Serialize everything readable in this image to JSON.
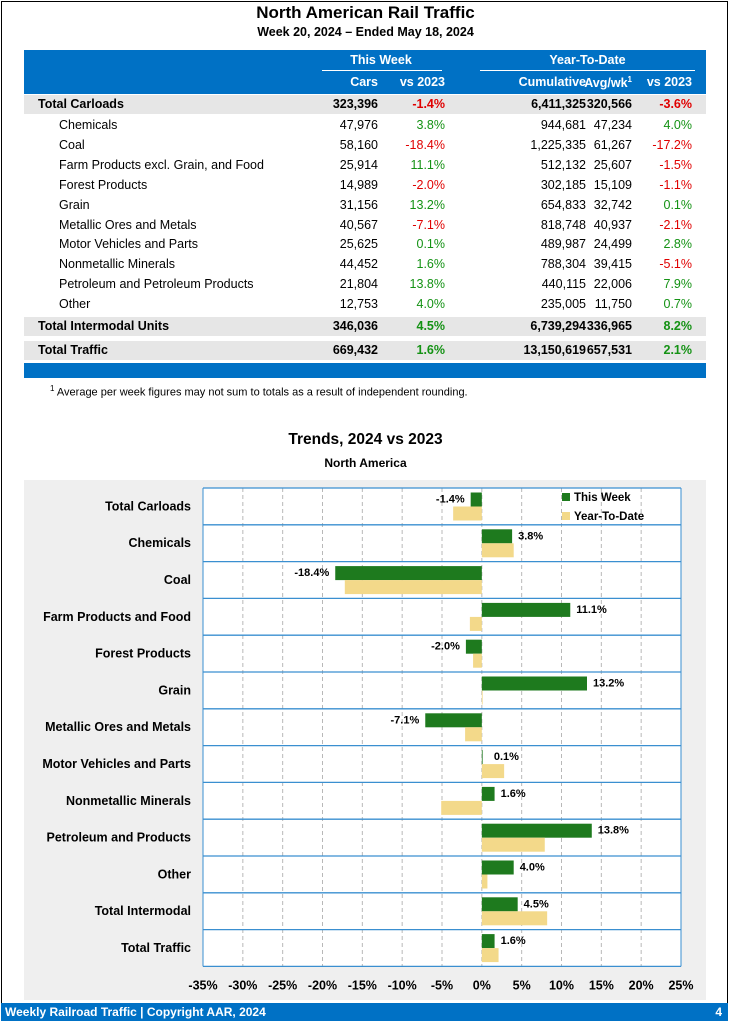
{
  "header": {
    "title": "North American Rail Traffic",
    "subtitle": "Week 20, 2024 – Ended May 18, 2024"
  },
  "table": {
    "group_this_week": "This Week",
    "group_ytd": "Year-To-Date",
    "col_cars": "Cars",
    "col_vs2023_week": "vs 2023",
    "col_cumulative": "Cumulative",
    "col_avgwk": "Avg/wk",
    "col_avgwk_sup": "1",
    "col_vs2023_ytd": "vs 2023",
    "rows": [
      {
        "label": "Total Carloads",
        "cars": "323,396",
        "wk_pct": "-1.4%",
        "cum": "6,411,325",
        "avg": "320,566",
        "ytd_pct": "-3.6%"
      },
      {
        "label": "Chemicals",
        "cars": "47,976",
        "wk_pct": "3.8%",
        "cum": "944,681",
        "avg": "47,234",
        "ytd_pct": "4.0%"
      },
      {
        "label": "Coal",
        "cars": "58,160",
        "wk_pct": "-18.4%",
        "cum": "1,225,335",
        "avg": "61,267",
        "ytd_pct": "-17.2%"
      },
      {
        "label": "Farm Products excl. Grain, and Food",
        "cars": "25,914",
        "wk_pct": "11.1%",
        "cum": "512,132",
        "avg": "25,607",
        "ytd_pct": "-1.5%"
      },
      {
        "label": "Forest Products",
        "cars": "14,989",
        "wk_pct": "-2.0%",
        "cum": "302,185",
        "avg": "15,109",
        "ytd_pct": "-1.1%"
      },
      {
        "label": "Grain",
        "cars": "31,156",
        "wk_pct": "13.2%",
        "cum": "654,833",
        "avg": "32,742",
        "ytd_pct": "0.1%"
      },
      {
        "label": "Metallic Ores and Metals",
        "cars": "40,567",
        "wk_pct": "-7.1%",
        "cum": "818,748",
        "avg": "40,937",
        "ytd_pct": "-2.1%"
      },
      {
        "label": "Motor Vehicles and Parts",
        "cars": "25,625",
        "wk_pct": "0.1%",
        "cum": "489,987",
        "avg": "24,499",
        "ytd_pct": "2.8%"
      },
      {
        "label": "Nonmetallic Minerals",
        "cars": "44,452",
        "wk_pct": "1.6%",
        "cum": "788,304",
        "avg": "39,415",
        "ytd_pct": "-5.1%"
      },
      {
        "label": "Petroleum and Petroleum Products",
        "cars": "21,804",
        "wk_pct": "13.8%",
        "cum": "440,115",
        "avg": "22,006",
        "ytd_pct": "7.9%"
      },
      {
        "label": "Other",
        "cars": "12,753",
        "wk_pct": "4.0%",
        "cum": "235,005",
        "avg": "11,750",
        "ytd_pct": "0.7%"
      },
      {
        "label": "Total Intermodal Units",
        "cars": "346,036",
        "wk_pct": "4.5%",
        "cum": "6,739,294",
        "avg": "336,965",
        "ytd_pct": "8.2%"
      },
      {
        "label": "Total Traffic",
        "cars": "669,432",
        "wk_pct": "1.6%",
        "cum": "13,150,619",
        "avg": "657,531",
        "ytd_pct": "2.1%"
      }
    ]
  },
  "footnote": {
    "marker": "1",
    "text": "Average per week figures may not sum to totals as a result of independent rounding."
  },
  "colors": {
    "header_blue": "#0071c5",
    "negative": "#e00000",
    "positive": "#149214",
    "this_week_bar": "#1e7a1e",
    "ytd_bar": "#f3d98a",
    "chart_background": "#efefef"
  },
  "chart_data": {
    "type": "bar",
    "orientation": "horizontal",
    "title": "Trends, 2024 vs 2023",
    "subtitle": "North America",
    "categories": [
      "Total Carloads",
      "Chemicals",
      "Coal",
      "Farm Products and Food",
      "Forest Products",
      "Grain",
      "Metallic Ores and Metals",
      "Motor Vehicles and Parts",
      "Nonmetallic Minerals",
      "Petroleum and Products",
      "Other",
      "Total Intermodal",
      "Total Traffic"
    ],
    "series": [
      {
        "name": "This Week",
        "values": [
          -1.4,
          3.8,
          -18.4,
          11.1,
          -2.0,
          13.2,
          -7.1,
          0.1,
          1.6,
          13.8,
          4.0,
          4.5,
          1.6
        ]
      },
      {
        "name": "Year-To-Date",
        "values": [
          -3.6,
          4.0,
          -17.2,
          -1.5,
          -1.1,
          0.1,
          -2.1,
          2.8,
          -5.1,
          7.9,
          0.7,
          8.2,
          2.1
        ]
      }
    ],
    "data_labels": [
      "-1.4%",
      "3.8%",
      "-18.4%",
      "11.1%",
      "-2.0%",
      "13.2%",
      "-7.1%",
      "0.1%",
      "1.6%",
      "13.8%",
      "4.0%",
      "4.5%",
      "1.6%"
    ],
    "xlim": [
      -35,
      25
    ],
    "xticks": [
      -35,
      -30,
      -25,
      -20,
      -15,
      -10,
      -5,
      0,
      5,
      10,
      15,
      20,
      25
    ],
    "xtick_labels": [
      "-35%",
      "-30%",
      "-25%",
      "-20%",
      "-15%",
      "-10%",
      "-5%",
      "0%",
      "5%",
      "10%",
      "15%",
      "20%",
      "25%"
    ],
    "grid": true,
    "legend_position": "top-right"
  },
  "footer": {
    "left": "Weekly Railroad Traffic | Copyright AAR, 2024",
    "page": "4"
  }
}
